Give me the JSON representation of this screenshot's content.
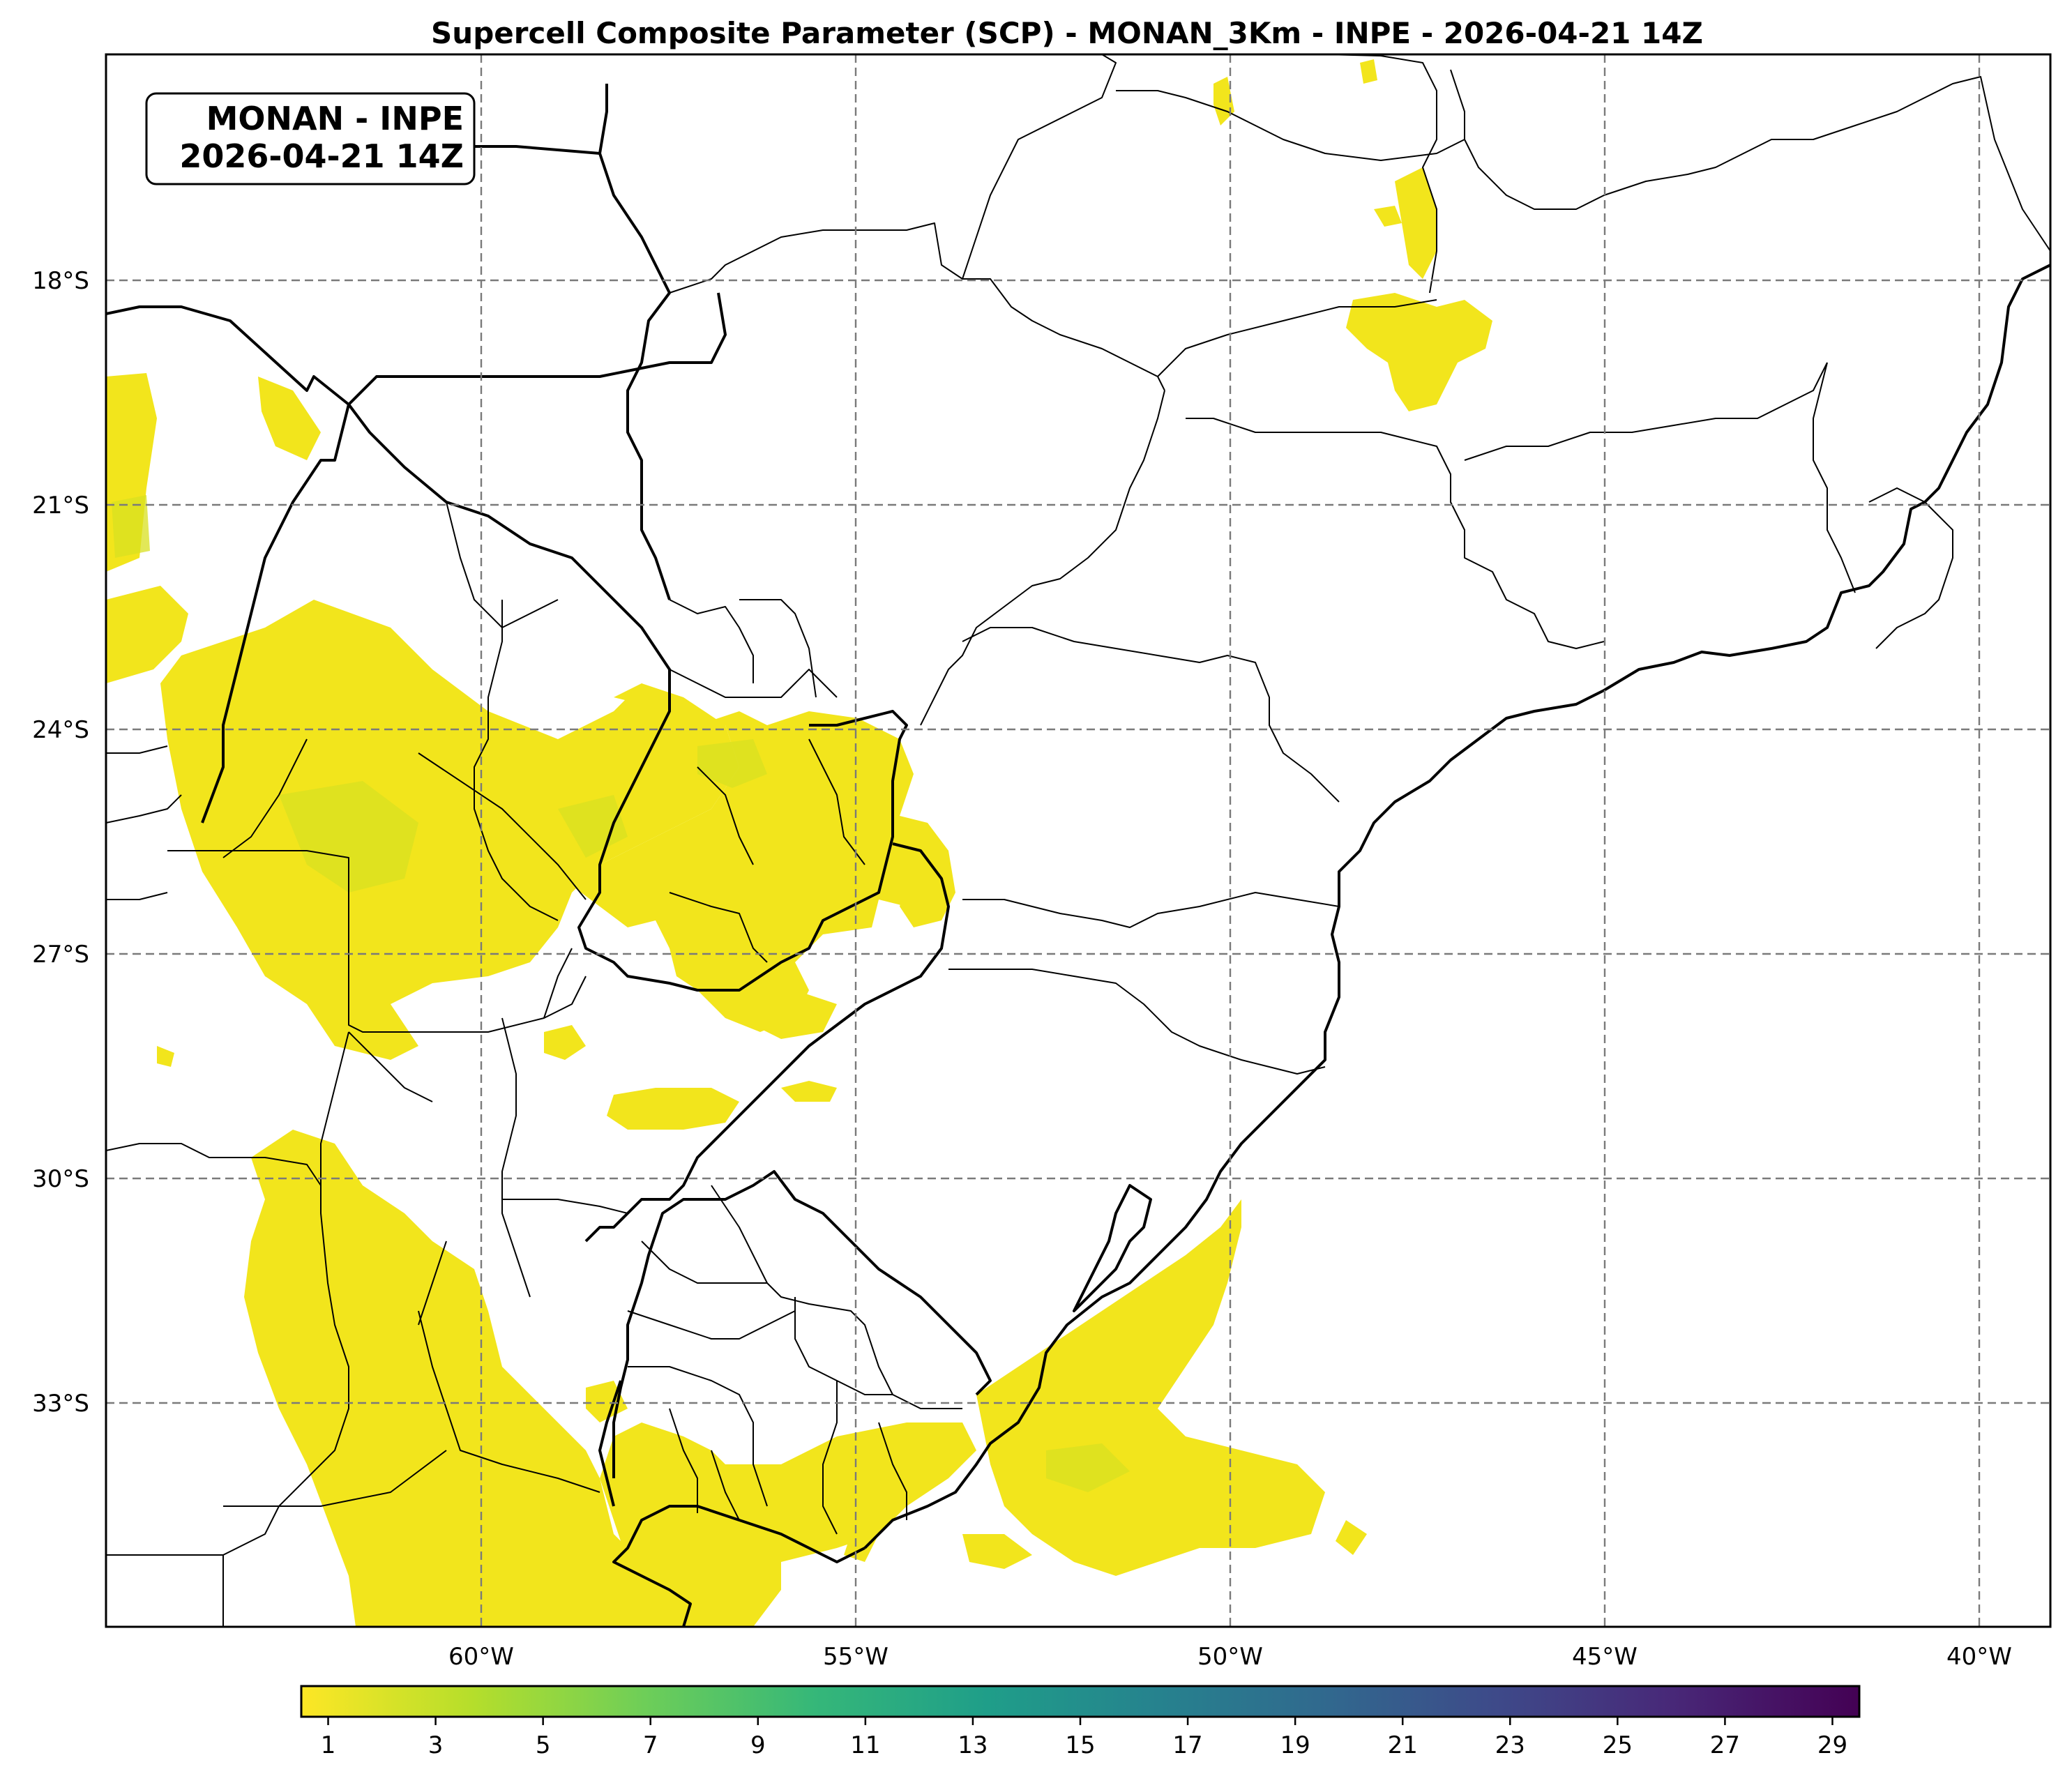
{
  "title": "Supercell Composite Parameter (SCP) - MONAN_3Km - INPE - 2026-04-21 14Z",
  "badge": {
    "line1": "MONAN - INPE",
    "line2": "2026-04-21 14Z"
  },
  "map": {
    "lon_range": [
      -65,
      -39
    ],
    "lat_range": [
      -38,
      -15
    ],
    "lon_ticks": [
      -60,
      -55,
      -50,
      -45,
      -40
    ],
    "lon_tick_labels": [
      "60°W",
      "55°W",
      "50°W",
      "45°W",
      "40°W"
    ],
    "lat_ticks": [
      -18,
      -21,
      -24,
      -27,
      -30,
      -33
    ],
    "lat_tick_labels": [
      "18°S",
      "21°S",
      "24°S",
      "27°S",
      "30°S",
      "33°S"
    ],
    "gridlines": true
  },
  "colorbar": {
    "colormap": "viridis_r",
    "min": 0.5,
    "max": 29.5,
    "ticks": [
      1,
      3,
      5,
      7,
      9,
      11,
      13,
      15,
      17,
      19,
      21,
      23,
      25,
      27,
      29
    ],
    "tick_labels": [
      "1",
      "3",
      "5",
      "7",
      "9",
      "11",
      "13",
      "15",
      "17",
      "19",
      "21",
      "23",
      "25",
      "27",
      "29"
    ],
    "colors": [
      "#fde725",
      "#b5de2b",
      "#6ece58",
      "#35b779",
      "#1f9e89",
      "#26828e",
      "#31688e",
      "#3e4989",
      "#482878",
      "#440154"
    ]
  }
}
